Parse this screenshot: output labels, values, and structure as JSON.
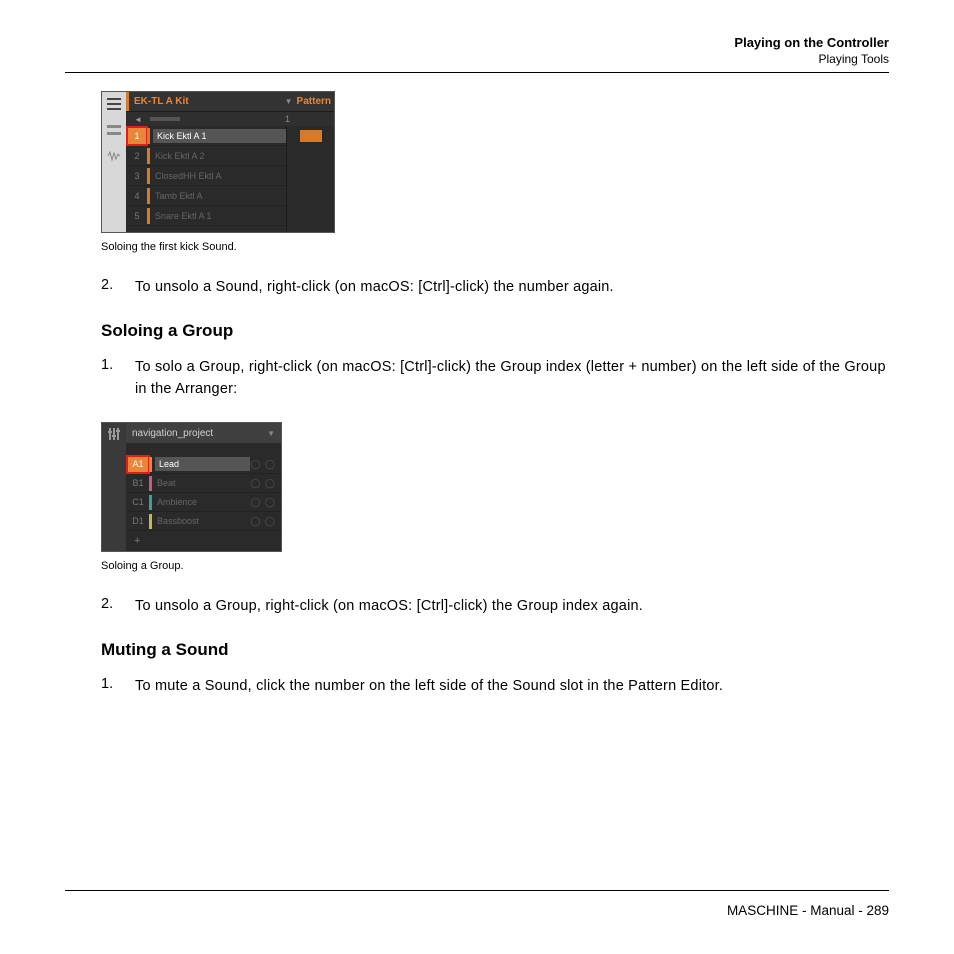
{
  "header": {
    "title": "Playing on the Controller",
    "subtitle": "Playing Tools"
  },
  "kit": {
    "title": "EK-TL A Kit",
    "pattern_label": "Pattern",
    "track_num": "1",
    "rows": [
      {
        "n": "1",
        "label": "Kick Ektl A 1",
        "color": "#d97a2a",
        "sel": true
      },
      {
        "n": "2",
        "label": "Kick Ektl A 2",
        "color": "#d97a2a",
        "sel": false
      },
      {
        "n": "3",
        "label": "ClosedHH Ektl A",
        "color": "#d97a2a",
        "sel": false
      },
      {
        "n": "4",
        "label": "Tamb Ektl A",
        "color": "#d97a2a",
        "sel": false
      },
      {
        "n": "5",
        "label": "Snare Ektl A 1",
        "color": "#d97a2a",
        "sel": false
      }
    ],
    "caption": "Soloing the first kick Sound."
  },
  "step2": {
    "num": "2.",
    "text": "To unsolo a Sound, right-click (on macOS: [Ctrl]-click) the number again."
  },
  "heading_group": "Soloing a Group",
  "group_step1": {
    "num": "1.",
    "text": "To solo a Group, right-click (on macOS: [Ctrl]-click) the Group index (letter + number) on the left side of the Group in the Arranger:"
  },
  "grp": {
    "title": "navigation_project",
    "rows": [
      {
        "idx": "A1",
        "label": "Lead",
        "color": "#e8863a",
        "sel": true
      },
      {
        "idx": "B1",
        "label": "Beat",
        "color": "#cc5a8a",
        "sel": false
      },
      {
        "idx": "C1",
        "label": "Ambience",
        "color": "#3aa0a0",
        "sel": false
      },
      {
        "idx": "D1",
        "label": "Bassboost",
        "color": "#c9b84a",
        "sel": false
      }
    ],
    "plus": "+",
    "caption": "Soloing a Group."
  },
  "group_step2": {
    "num": "2.",
    "text": "To unsolo a Group, right-click (on macOS: [Ctrl]-click) the Group index again."
  },
  "heading_mute": "Muting a Sound",
  "mute_step1": {
    "num": "1.",
    "text": "To mute a Sound, click the number on the left side of the Sound slot in the Pattern Editor."
  },
  "footer": {
    "text": "MASCHINE - Manual - 289"
  }
}
